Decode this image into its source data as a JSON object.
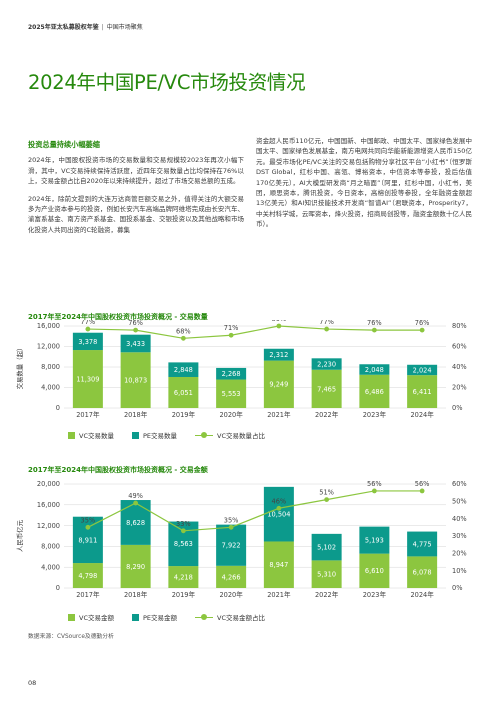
{
  "header": {
    "report": "2025年亚太私募股权年鉴",
    "section": "中国市场聚焦"
  },
  "title": "2024年中国PE/VC市场投资情况",
  "left_col": {
    "subheading": "投资总量持续小幅萎缩",
    "p1": "2024年，中国股权投资市场的交易数量和交易规模较2023年再次小幅下滑，其中，VC交易持续保持活跃度，近四年交易数量占比均保持在76%以上，交易金额占比自2020年以来持续提升，超过了市场交易总额的五成。",
    "p2": "2024年，除前文提到的大连万达商管巨额交易之外，值得关注的大额交易多为产业资本参与的投资，例如长安汽车高端品牌阿维塔完成由长安汽车、渝富系基金、南方资产系基金、国投系基金、交银投资以及其他战略和市场化投资人共同出资的C轮融资，募集"
  },
  "right_col": {
    "p1": "资金超人民币110亿元，中国国新、中国邮政、中国太平、国家绿色发展中国太平、国家绿色发展基金，南方电网共同向华能新能源增资人民币150亿元。最受市场化PE/VC关注的交易包括购物分享社区平台“小红书”（恒罗斯DST Global，红杉中国、高瓴、博裕资本，中信资本等参投，投后估值170亿美元），AI大模型研发商“月之暗面”（阿里，红杉中国，小红书，美团，顺思资本，腾讯投资，今日资本，高榕创投等参投，全年融资金额超13亿美元）和AI知识技能技术开发商“智谱AI”（君联资本，Prosperity7，中关村科学城，云晖资本，烽火投资，招商局创投等，融资金额数十亿人民币）。"
  },
  "chart_data": [
    {
      "type": "bar",
      "title": "2017年至2024年中国股权投资市场投资概况 - 交易数量",
      "ylabel": "交易数量（起）",
      "categories": [
        "2017年",
        "2018年",
        "2019年",
        "2020年",
        "2021年",
        "2022年",
        "2023年",
        "2024年"
      ],
      "stacked": true,
      "series": [
        {
          "name": "VC交易数量",
          "values": [
            11309,
            10873,
            6051,
            5553,
            9249,
            7465,
            6486,
            6411
          ],
          "color": "#8cc63f"
        },
        {
          "name": "PE交易数量",
          "values": [
            3378,
            3433,
            2848,
            2268,
            2312,
            2230,
            2048,
            2024
          ],
          "color": "#0c9a8c"
        },
        {
          "name": "VC交易数量占比",
          "values": [
            77,
            76,
            68,
            71,
            80,
            77,
            76,
            76
          ],
          "axis": "right",
          "unit": "%",
          "color": "#8cc63f"
        }
      ],
      "ylim": [
        0,
        16000
      ],
      "yticks": [
        "0",
        "4,000",
        "8,000",
        "12,000",
        "16,000"
      ],
      "ylim_right": [
        0,
        80
      ],
      "yticks_right": [
        "0%",
        "20%",
        "40%",
        "60%",
        "80%"
      ],
      "grid": true,
      "legend": "bottom"
    },
    {
      "type": "bar",
      "title": "2017年至2024年中国股权投资市场投资概况 - 交易金额",
      "ylabel": "人民币亿元",
      "categories": [
        "2017年",
        "2018年",
        "2019年",
        "2020年",
        "2021年",
        "2022年",
        "2023年",
        "2024年"
      ],
      "stacked": true,
      "series": [
        {
          "name": "VC交易金额",
          "values": [
            4798,
            8290,
            4218,
            4266,
            8947,
            5310,
            6610,
            6078
          ],
          "color": "#8cc63f"
        },
        {
          "name": "PE交易金额",
          "values": [
            8911,
            8628,
            8563,
            7922,
            10504,
            5102,
            5193,
            4775
          ],
          "color": "#0c9a8c"
        },
        {
          "name": "VC交易金额占比",
          "values": [
            35,
            49,
            33,
            35,
            46,
            51,
            56,
            56
          ],
          "axis": "right",
          "unit": "%",
          "color": "#8cc63f"
        }
      ],
      "ylim": [
        0,
        20000
      ],
      "yticks": [
        "0",
        "4,000",
        "8,000",
        "12,000",
        "16,000",
        "20,000"
      ],
      "ylim_right": [
        0,
        60
      ],
      "yticks_right": [
        "0%",
        "10%",
        "20%",
        "30%",
        "40%",
        "50%",
        "60%"
      ],
      "grid": true,
      "legend": "bottom"
    }
  ],
  "source": "数据来源：CVSource及德勤分析",
  "page_number": "08"
}
